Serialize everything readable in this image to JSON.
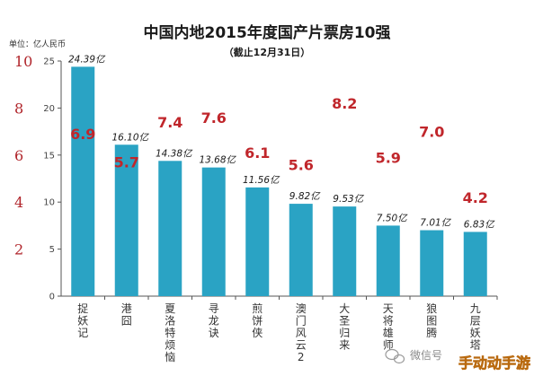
{
  "chart_data": {
    "type": "bar",
    "title": "中国内地2015年度国产片票房10强",
    "subtitle": "（截止12月31日）",
    "ylabel": "单位：亿人民币",
    "ylim": [
      0,
      25
    ],
    "yticks": [
      0,
      5,
      10,
      15,
      20,
      25
    ],
    "ylim_right": [
      0,
      10
    ],
    "yticks_right": [
      2,
      4,
      6,
      8,
      10
    ],
    "categories": [
      "捉妖记",
      "港囧",
      "夏洛特烦恼",
      "寻龙诀",
      "煎饼侠",
      "澳门风云2",
      "大圣归来",
      "天将雄师",
      "狼图腾",
      "九层妖塔"
    ],
    "values": [
      24.39,
      16.1,
      14.38,
      13.68,
      11.56,
      9.82,
      9.53,
      7.5,
      7.01,
      6.83
    ],
    "value_labels": [
      "24.39亿",
      "16.10亿",
      "14.38亿",
      "13.68亿",
      "11.56亿",
      "9.82亿",
      "9.53亿",
      "7.50亿",
      "7.01亿",
      "6.83亿"
    ],
    "ratings": [
      6.9,
      5.7,
      7.4,
      7.6,
      6.1,
      5.6,
      8.2,
      5.9,
      7.0,
      4.2
    ],
    "rating_labels": [
      "6.9",
      "5.7",
      "7.4",
      "7.6",
      "6.1",
      "5.6",
      "8.2",
      "5.9",
      "7.0",
      "4.2"
    ],
    "grid": false,
    "bar_color": "#2aa3c4",
    "rating_color": "#c0262b",
    "right_axis_color": "#b0242a"
  },
  "watermark": {
    "left_text": "微信号",
    "right_text": "手动动手游"
  }
}
